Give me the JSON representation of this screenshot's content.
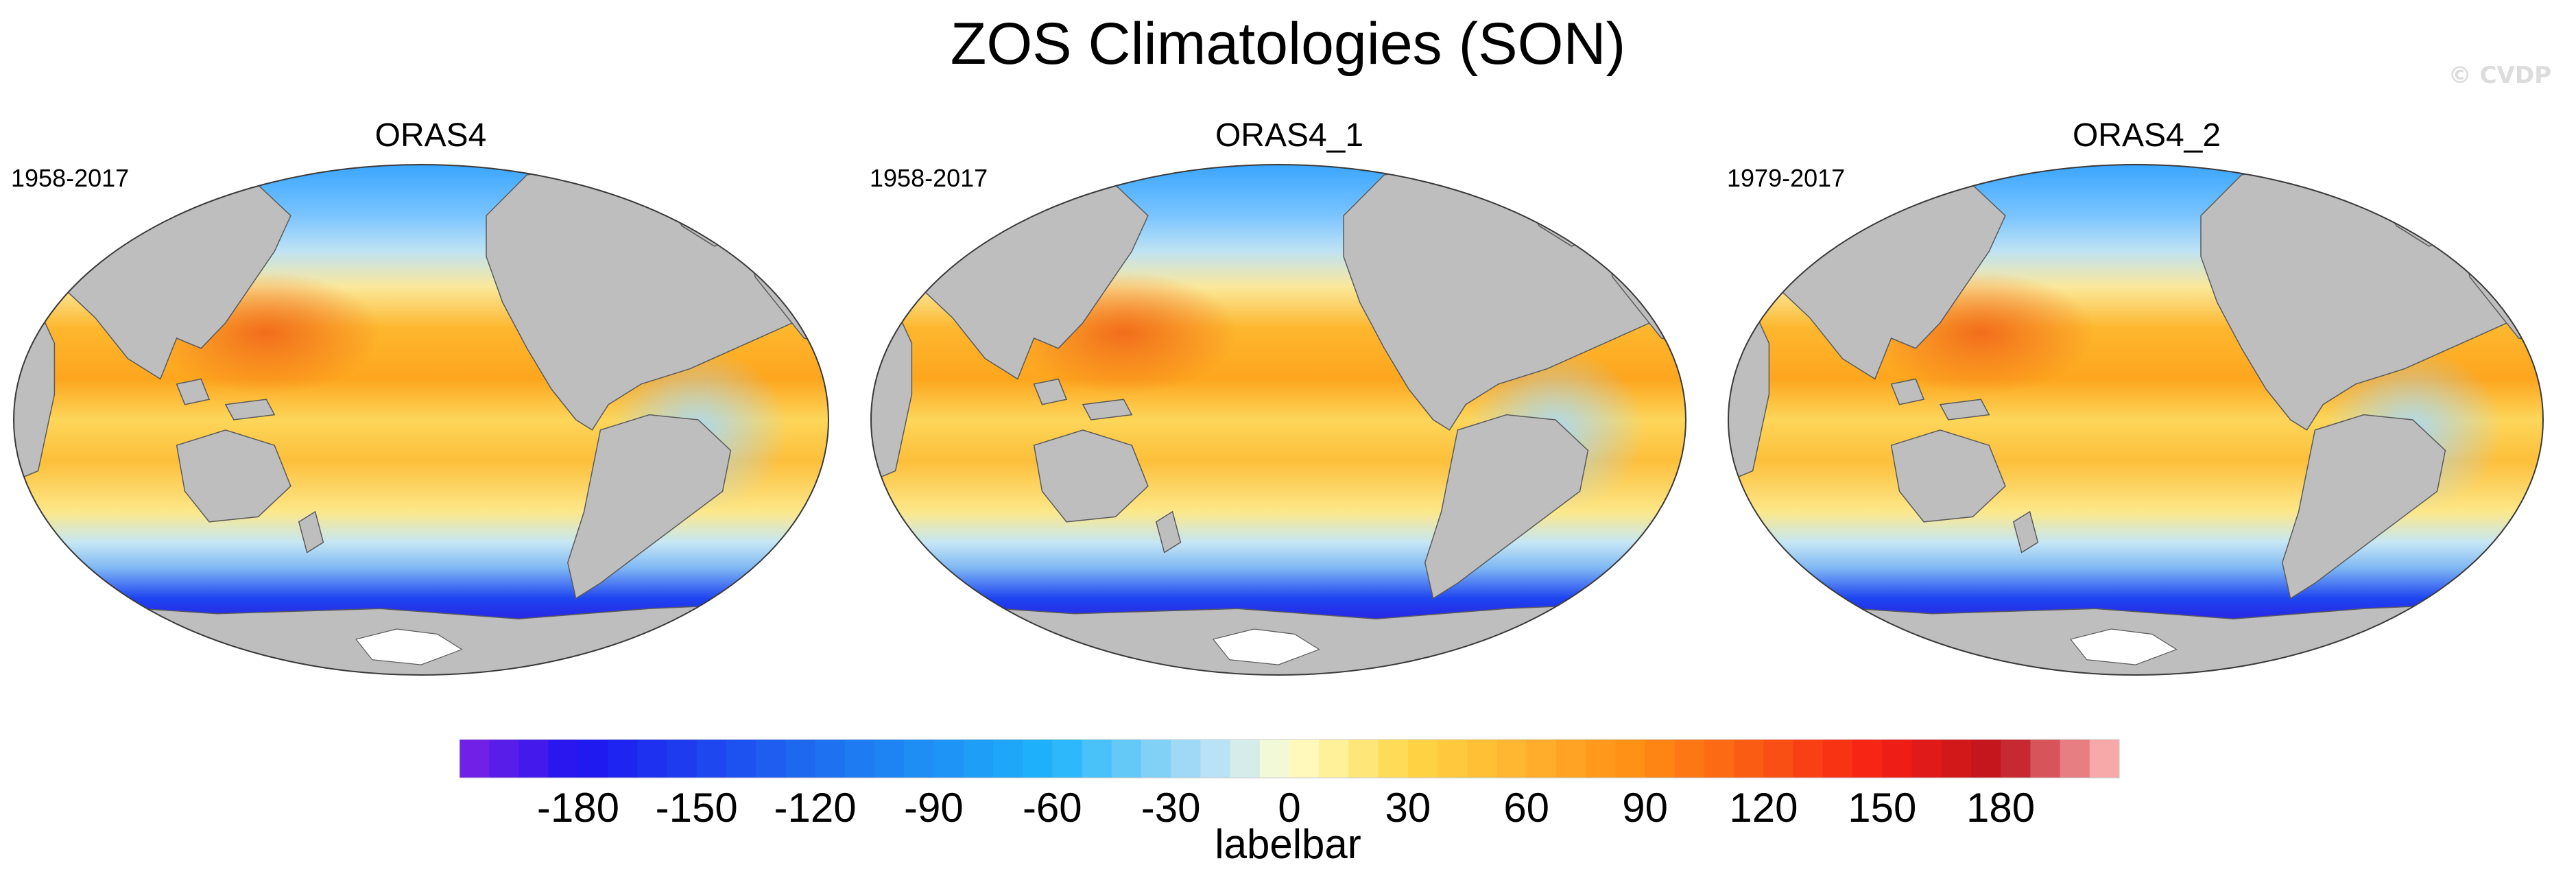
{
  "figure": {
    "title": "ZOS Climatologies (SON)",
    "watermark": "© CVDP"
  },
  "panels": [
    {
      "title": "ORAS4",
      "period": "1958-2017"
    },
    {
      "title": "ORAS4_1",
      "period": "1958-2017"
    },
    {
      "title": "ORAS4_2",
      "period": "1979-2017"
    }
  ],
  "colorbar": {
    "label": "labelbar",
    "ticks": [
      "-180",
      "-150",
      "-120",
      "-90",
      "-60",
      "-30",
      "0",
      "30",
      "60",
      "90",
      "120",
      "150",
      "180"
    ],
    "min": -210,
    "max": 210,
    "step": 7.5,
    "colors": {
      "ocean_land": "#bebebe",
      "antarctic_ice": "#ffffff",
      "outline": "#3a3a3a"
    }
  }
}
